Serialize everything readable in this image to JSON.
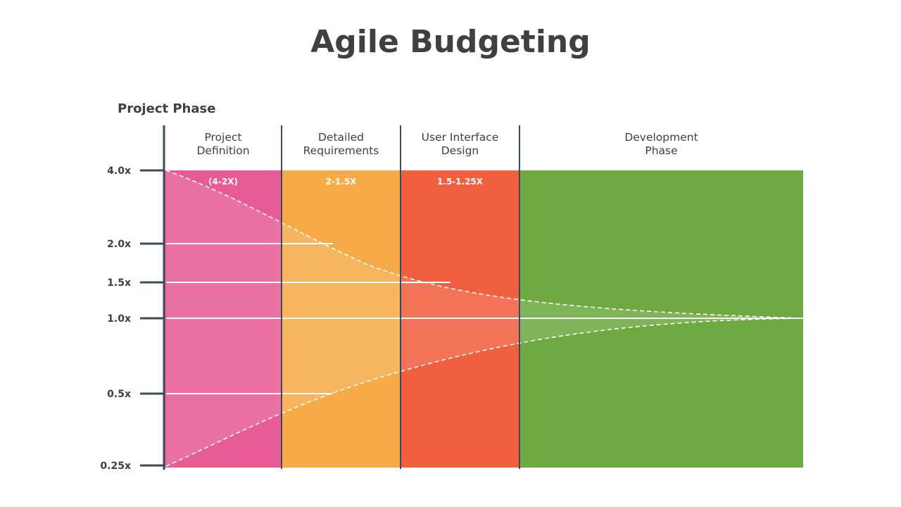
{
  "title": "Agile Budgeting",
  "axis_title": "Project Phase",
  "y_ticks": [
    "4.0x",
    "2.0x",
    "1.5x",
    "1.0x",
    "0.5x",
    "0.25x"
  ],
  "phases": [
    {
      "label_lines": [
        "Project",
        "Definition"
      ],
      "range": "(4-2X)",
      "color": "#E85C95"
    },
    {
      "label_lines": [
        "Detailed",
        "Requirements"
      ],
      "range": "2-1.5X",
      "color": "#F7AB48"
    },
    {
      "label_lines": [
        "User Interface",
        "Design"
      ],
      "range": "1.5-1.25X",
      "color": "#F05F3E"
    },
    {
      "label_lines": [
        "Development",
        "Phase"
      ],
      "range": "",
      "color": "#6EA941"
    }
  ],
  "colors": {
    "text": "#404040",
    "axis": "#3d4a5c",
    "guide": "#ffffff"
  }
}
